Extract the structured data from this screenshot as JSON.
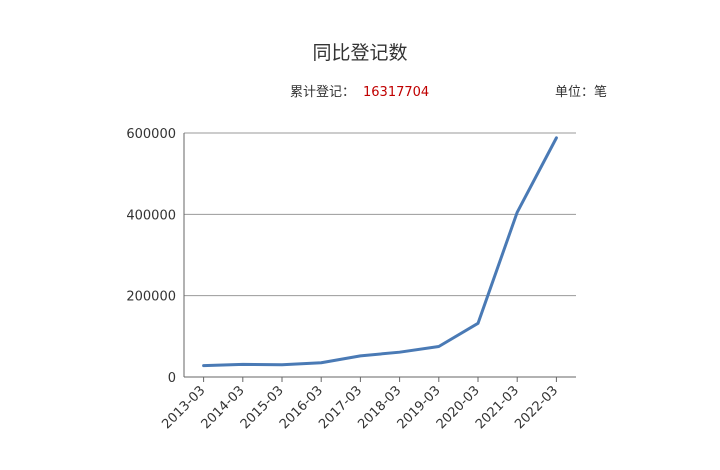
{
  "title": "同比登记数",
  "total": {
    "label": "累计登记：",
    "value": "16317704"
  },
  "unit": "单位：笔",
  "colors": {
    "line": "#4a7ab5",
    "total_value": "#c00000",
    "grid": "#999999"
  },
  "chart_data": {
    "type": "line",
    "categories": [
      "2013-03",
      "2014-03",
      "2015-03",
      "2016-03",
      "2017-03",
      "2018-03",
      "2019-03",
      "2020-03",
      "2021-03",
      "2022-03"
    ],
    "series": [
      {
        "values": [
          28000,
          31000,
          30000,
          35000,
          52000,
          61000,
          75000,
          132000,
          405000,
          588000
        ]
      }
    ],
    "ylim": [
      0,
      600000
    ],
    "yticks": [
      0,
      200000,
      400000,
      600000
    ],
    "grid": true
  }
}
